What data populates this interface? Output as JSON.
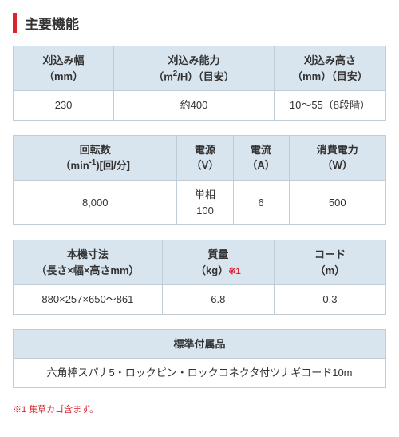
{
  "colors": {
    "accent_bar": "#d9232d",
    "th_bg": "#d8e4ee",
    "border": "#bfcdd9",
    "text": "#333333",
    "note": "#d9232d",
    "bg": "#ffffff"
  },
  "title": "主要機能",
  "table1": {
    "headers": {
      "col1_line1": "刈込み幅",
      "col1_line2": "（mm）",
      "col2_line1": "刈込み能力",
      "col2_line2_pre": "（m",
      "col2_line2_sup": "2",
      "col2_line2_post": "/H）（目安）",
      "col3_line1": "刈込み高さ",
      "col3_line2": "（mm）（目安）"
    },
    "row": {
      "col1": "230",
      "col2": "約400",
      "col3": "10～55（8段階）"
    },
    "widths": {
      "col1": "27%",
      "col2": "43%",
      "col3": "30%"
    }
  },
  "table2": {
    "headers": {
      "col1_line1": "回転数",
      "col1_line2_pre": "（min",
      "col1_line2_sup": "-1",
      "col1_line2_post": ")[回/分]",
      "col2_line1": "電源",
      "col2_line2": "（V）",
      "col3_line1": "電流",
      "col3_line2": "（A）",
      "col4_line1": "消費電力",
      "col4_line2": "（W）"
    },
    "row": {
      "col1": "8,000",
      "col2_line1": "単相",
      "col2_line2": "100",
      "col3": "6",
      "col4": "500"
    },
    "widths": {
      "col1": "44%",
      "col2": "15%",
      "col3": "15%",
      "col4": "26%"
    }
  },
  "table3": {
    "headers": {
      "col1_line1": "本機寸法",
      "col1_line2": "（長さ×幅×高さmm）",
      "col2_line1": "質量",
      "col2_line2_pre": "（kg）",
      "col2_note": "※1",
      "col3_line1": "コード",
      "col3_line2": "（m）"
    },
    "row": {
      "col1": "880×257×650～861",
      "col2": "6.8",
      "col3": "0.3"
    },
    "widths": {
      "col1": "40%",
      "col2": "30%",
      "col3": "30%"
    }
  },
  "table4": {
    "header": "標準付属品",
    "row": "六角棒スパナ5・ロックピン・ロックコネクタ付ツナギコード10m"
  },
  "footnote": "※1 集草カゴ含まず。"
}
